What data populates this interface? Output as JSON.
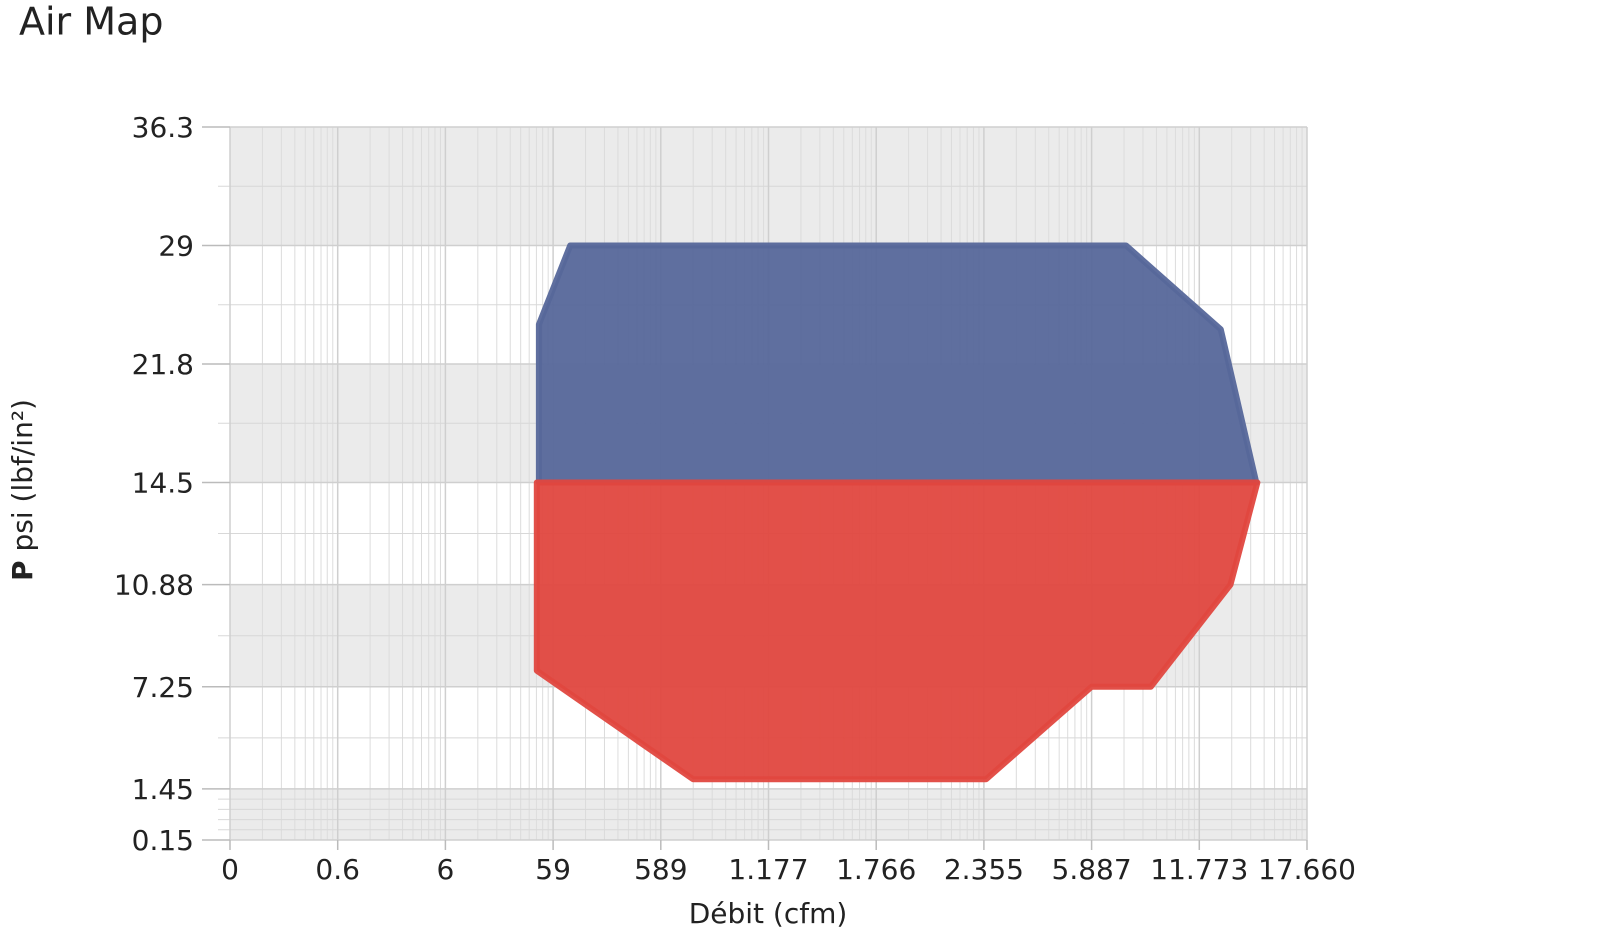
{
  "chart_data": {
    "type": "polygon",
    "title": "Air Map",
    "xlabel": "Débit (cfm)",
    "ylabel_symbol": "P",
    "ylabel": "psi (lbf/in²)",
    "xlim": [
      0,
      17660
    ],
    "ylim": [
      0.15,
      36.3
    ],
    "xticks": [
      0,
      0.6,
      6,
      59,
      589,
      {
        "value": 1177,
        "label": "1.177"
      },
      {
        "value": 1766,
        "label": "1.766"
      },
      {
        "value": 2355,
        "label": "2.355"
      },
      {
        "value": 5887,
        "label": "5.887"
      },
      {
        "value": 11773,
        "label": "11.773"
      },
      {
        "value": 17660,
        "label": "17.660"
      }
    ],
    "yticks": [
      0.15,
      1.45,
      7.25,
      10.88,
      14.5,
      21.8,
      29,
      36.3
    ],
    "grid": true,
    "series": [
      {
        "color": "#56679a",
        "x": [
          52,
          52,
          143,
          7770,
          12950,
          14890
        ],
        "y": [
          14.5,
          24.2,
          29,
          29,
          23.9,
          14.5
        ]
      },
      {
        "color": "#e0473f",
        "x": [
          51,
          14950,
          13480,
          9124,
          5887,
          2426,
          765,
          51
        ],
        "y": [
          14.5,
          14.5,
          10.88,
          7.25,
          7.25,
          2,
          2,
          7.82
        ]
      }
    ]
  }
}
